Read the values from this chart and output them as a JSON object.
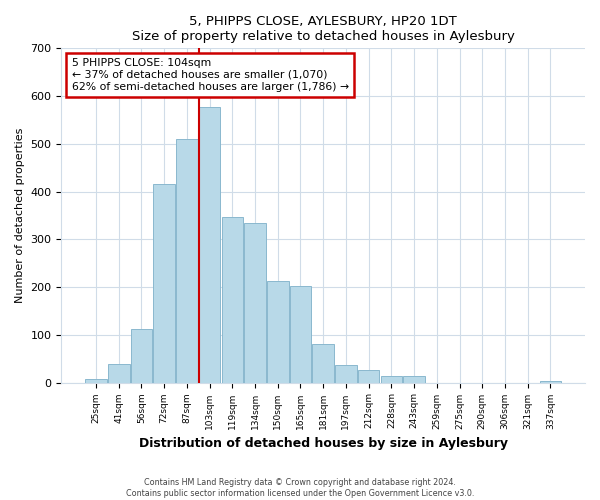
{
  "title": "5, PHIPPS CLOSE, AYLESBURY, HP20 1DT",
  "subtitle": "Size of property relative to detached houses in Aylesbury",
  "xlabel": "Distribution of detached houses by size in Aylesbury",
  "ylabel": "Number of detached properties",
  "bar_labels": [
    "25sqm",
    "41sqm",
    "56sqm",
    "72sqm",
    "87sqm",
    "103sqm",
    "119sqm",
    "134sqm",
    "150sqm",
    "165sqm",
    "181sqm",
    "197sqm",
    "212sqm",
    "228sqm",
    "243sqm",
    "259sqm",
    "275sqm",
    "290sqm",
    "306sqm",
    "321sqm",
    "337sqm"
  ],
  "bar_values": [
    8,
    38,
    112,
    415,
    510,
    578,
    347,
    335,
    212,
    202,
    80,
    37,
    26,
    13,
    13,
    0,
    0,
    0,
    0,
    0,
    3
  ],
  "bar_color": "#b8d9e8",
  "bar_edge_color": "#8ab8ce",
  "highlight_index": 5,
  "highlight_line_color": "#cc0000",
  "ylim": [
    0,
    700
  ],
  "yticks": [
    0,
    100,
    200,
    300,
    400,
    500,
    600,
    700
  ],
  "annotation_line1": "5 PHIPPS CLOSE: 104sqm",
  "annotation_line2": "← 37% of detached houses are smaller (1,070)",
  "annotation_line3": "62% of semi-detached houses are larger (1,786) →",
  "annotation_box_color": "#ffffff",
  "annotation_box_edge": "#cc0000",
  "footer1": "Contains HM Land Registry data © Crown copyright and database right 2024.",
  "footer2": "Contains public sector information licensed under the Open Government Licence v3.0.",
  "background_color": "#ffffff",
  "grid_color": "#d0dce8"
}
